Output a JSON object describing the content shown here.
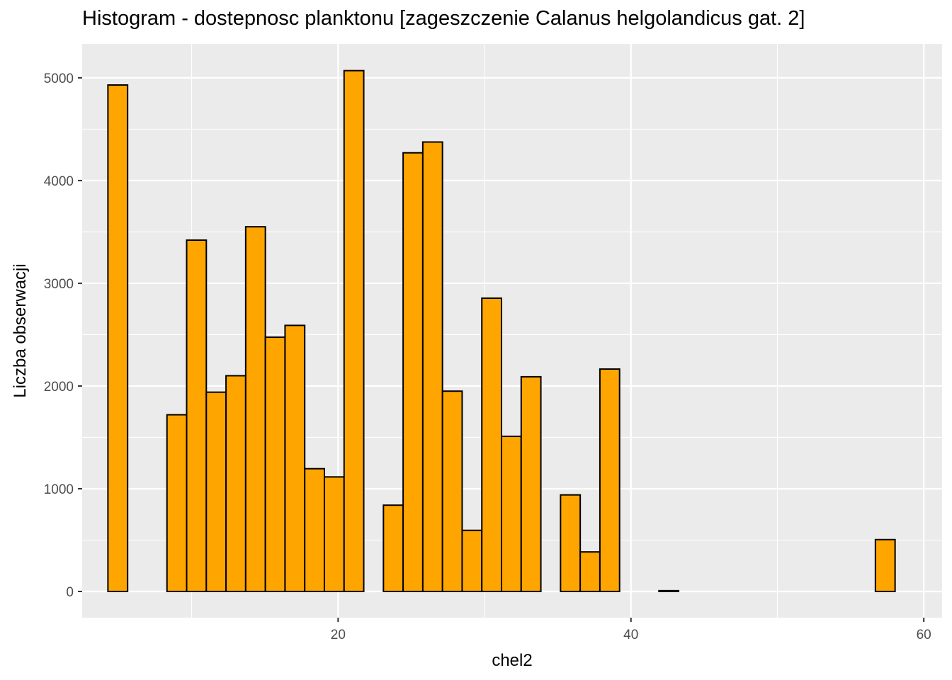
{
  "chart_data": {
    "type": "bar",
    "title": "Histogram - dostepnosc planktonu [zageszczenie Calanus helgolandicus gat. 2]",
    "xlabel": "chel2",
    "ylabel": "Liczba obserwacji",
    "xlim": [
      2.52,
      61.25
    ],
    "ylim": [
      -255,
      5330
    ],
    "x_ticks": [
      20,
      40,
      60
    ],
    "y_ticks": [
      0,
      1000,
      2000,
      3000,
      4000,
      5000
    ],
    "bin_width": 1.344,
    "bin_start": 4.28,
    "values": [
      4930,
      0,
      0,
      1720,
      3420,
      1940,
      2100,
      3550,
      2475,
      2590,
      1195,
      1115,
      5070,
      0,
      840,
      4270,
      4375,
      1950,
      595,
      2855,
      1510,
      2090,
      0,
      940,
      385,
      2165,
      0,
      0,
      8,
      0,
      0,
      0,
      0,
      0,
      0,
      0,
      0,
      0,
      0,
      505
    ],
    "grid": true,
    "bar_fill": "#FFA500",
    "bar_stroke": "#000000",
    "panel_bg": "#EBEBEB",
    "grid_color": "#FFFFFF"
  }
}
